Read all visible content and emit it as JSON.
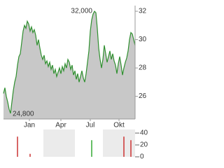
{
  "chart_data": [
    {
      "type": "area",
      "x": [
        0,
        1,
        2,
        3,
        4,
        5,
        6,
        7,
        8,
        9,
        10,
        11,
        12,
        13,
        14,
        15,
        16,
        17,
        18,
        19,
        20,
        21,
        22,
        23,
        24,
        25,
        26,
        27,
        28,
        29,
        30,
        31,
        32,
        33,
        34,
        35,
        36,
        37,
        38,
        39,
        40,
        41,
        42,
        43,
        44,
        45,
        46,
        47,
        48,
        49,
        50,
        51,
        52,
        53,
        54,
        55,
        56,
        57,
        58,
        59,
        60,
        61,
        62,
        63,
        64,
        65,
        66,
        67,
        68,
        69,
        70,
        71,
        72,
        73,
        74,
        75,
        76,
        77,
        78,
        79,
        80,
        81,
        82,
        83,
        84,
        85,
        86,
        87,
        88,
        89,
        90,
        91,
        92,
        93,
        94
      ],
      "series": [
        {
          "color": "#2f8f2f",
          "fill": "#c8c8c8",
          "values": [
            26.2,
            26.6,
            26.0,
            25.6,
            25.1,
            24.8,
            25.6,
            26.4,
            27.0,
            27.4,
            28.2,
            28.8,
            29.0,
            29.8,
            30.6,
            31.0,
            30.8,
            31.3,
            31.1,
            30.6,
            30.9,
            30.5,
            30.7,
            30.3,
            29.6,
            30.0,
            29.4,
            28.9,
            28.6,
            28.9,
            28.3,
            28.5,
            28.1,
            28.4,
            27.9,
            28.2,
            27.6,
            27.9,
            27.4,
            27.7,
            28.0,
            27.6,
            28.1,
            27.8,
            28.3,
            28.0,
            28.6,
            28.4,
            27.9,
            28.2,
            27.5,
            27.8,
            27.2,
            27.6,
            27.0,
            27.4,
            27.8,
            27.3,
            27.0,
            27.6,
            28.4,
            29.2,
            30.6,
            31.4,
            31.8,
            32.0,
            31.9,
            30.8,
            29.4,
            28.6,
            28.0,
            28.6,
            29.6,
            29.0,
            28.4,
            28.8,
            29.2,
            28.6,
            29.0,
            28.5,
            28.2,
            27.6,
            28.3,
            28.8,
            28.2,
            27.5,
            28.0,
            28.4,
            28.7,
            29.2,
            30.0,
            30.5,
            30.4,
            30.0,
            29.6
          ]
        }
      ],
      "xlim": [
        0,
        94
      ],
      "xticks": [
        {
          "value": 18.5,
          "label": "Jan"
        },
        {
          "value": 41,
          "label": "Apr"
        },
        {
          "value": 62,
          "label": "Jul"
        },
        {
          "value": 82.5,
          "label": "Okt"
        }
      ],
      "ylim": [
        24.4,
        32.4
      ],
      "yticks": [
        26,
        28,
        30,
        32
      ],
      "annotations": [
        {
          "label": "32,000",
          "value": 32.0
        },
        {
          "label": "24,800",
          "value": 24.8
        }
      ]
    },
    {
      "type": "bar",
      "x": [
        10,
        19,
        63,
        86,
        91
      ],
      "values": [
        34,
        5,
        28,
        34,
        28
      ],
      "colors": [
        "#cc3333",
        "#cc3333",
        "#33aa33",
        "#cc3333",
        "#cc3333"
      ],
      "xlim": [
        0,
        94
      ],
      "ylim": [
        0,
        46
      ],
      "yticks": [
        0,
        20,
        40
      ]
    }
  ]
}
